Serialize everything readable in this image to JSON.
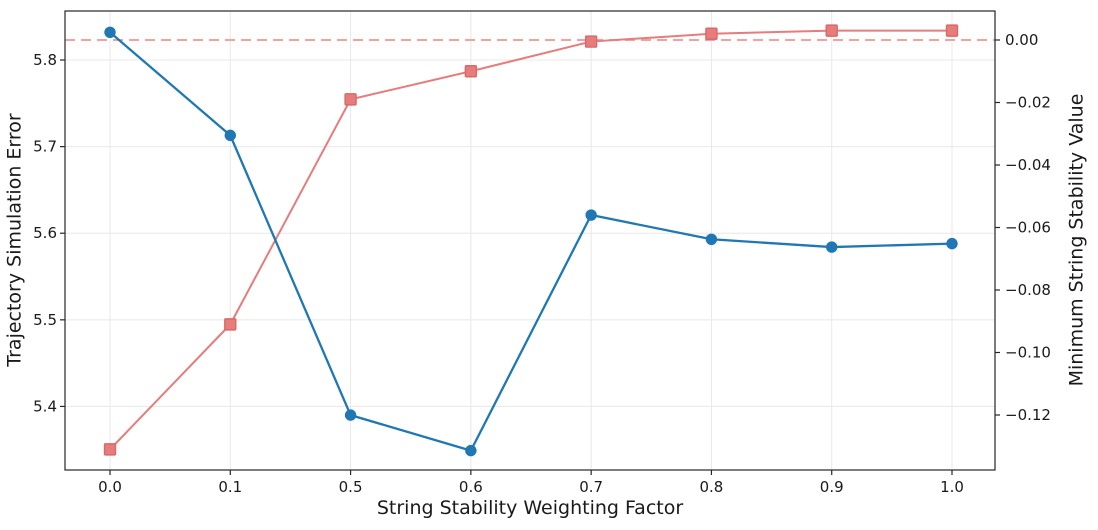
{
  "chart_data": {
    "type": "line",
    "title": "",
    "xlabel": "String Stability Weighting Factor",
    "ylabel_left": "Trajectory Simulation Error",
    "ylabel_right": "Minimum String Stability Value",
    "categories": [
      "0.0",
      "0.1",
      "0.5",
      "0.6",
      "0.7",
      "0.8",
      "0.9",
      "1.0"
    ],
    "x_spacing": "categorical-even",
    "series": [
      {
        "name": "Trajectory Simulation Error",
        "axis": "left",
        "marker": "circle",
        "color": "#1f77b4",
        "values": [
          5.832,
          5.713,
          5.39,
          5.349,
          5.621,
          5.593,
          5.584,
          5.588
        ]
      },
      {
        "name": "Minimum String Stability Value",
        "axis": "right",
        "marker": "square",
        "color": "#e67c7c",
        "values": [
          -0.131,
          -0.091,
          -0.019,
          -0.01,
          -0.0005,
          0.002,
          0.003,
          0.003
        ]
      }
    ],
    "reference_line": {
      "axis": "right",
      "value": 0.0,
      "style": "dashed",
      "color": "#f2a2a2"
    },
    "axes": {
      "left": {
        "ticks": [
          5.4,
          5.5,
          5.6,
          5.7,
          5.8
        ],
        "tick_labels": [
          "5.4",
          "5.5",
          "5.6",
          "5.7",
          "5.8"
        ],
        "lim": [
          5.3266,
          5.8566
        ]
      },
      "right": {
        "ticks": [
          0.0,
          -0.02,
          -0.04,
          -0.06,
          -0.08,
          -0.1,
          -0.12
        ],
        "tick_labels": [
          "0.00",
          "−0.02",
          "−0.04",
          "−0.06",
          "−0.08",
          "−0.10",
          "−0.12"
        ],
        "lim": [
          -0.1376,
          0.00928
        ]
      },
      "x": {
        "tick_labels": [
          "0.0",
          "0.1",
          "0.5",
          "0.6",
          "0.7",
          "0.8",
          "0.9",
          "1.0"
        ]
      }
    },
    "grid": true,
    "legend": "none"
  },
  "colors": {
    "blue_series": "#1f77b4",
    "red_series": "#e67c7c",
    "red_series_edge": "#db6868",
    "dashed_reference": "#f2a2a2",
    "grid": "#e8e8e8",
    "axis": "#262626",
    "text": "#1a1a1a",
    "background": "#ffffff"
  }
}
